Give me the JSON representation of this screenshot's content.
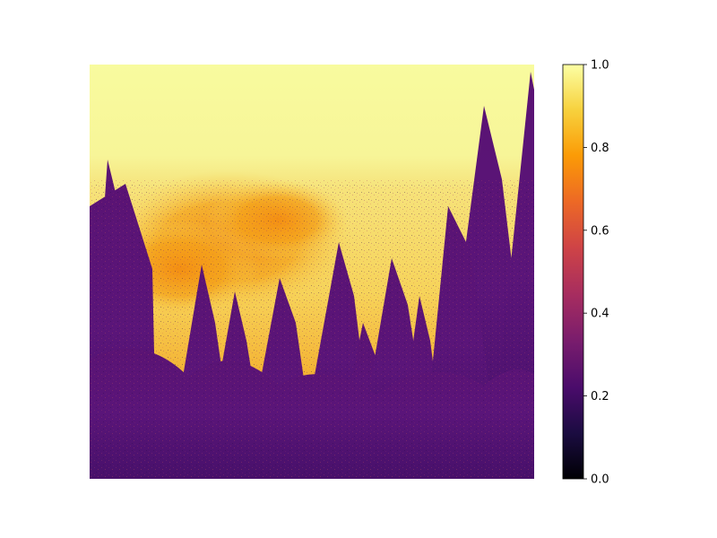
{
  "chart_data": {
    "type": "heatmap",
    "title": "",
    "xlabel": "",
    "ylabel": "",
    "axes_visible": false,
    "image_content": "pseudocolor-rendered photograph of a misty mountain forest with conifer trees",
    "colormap": "inferno",
    "value_range": [
      0.0,
      1.0
    ],
    "colorbar": {
      "position": "right",
      "ticks": [
        0.0,
        0.2,
        0.4,
        0.6,
        0.8,
        1.0
      ],
      "tick_labels": [
        "0.0",
        "0.2",
        "0.4",
        "0.6",
        "0.8",
        "1.0"
      ]
    },
    "inferno_stops": [
      "#000004",
      "#1b0c41",
      "#4a0c6b",
      "#781c6d",
      "#a52c60",
      "#cf4446",
      "#ed6925",
      "#fb9b06",
      "#f7d13d",
      "#fcffa4"
    ]
  }
}
